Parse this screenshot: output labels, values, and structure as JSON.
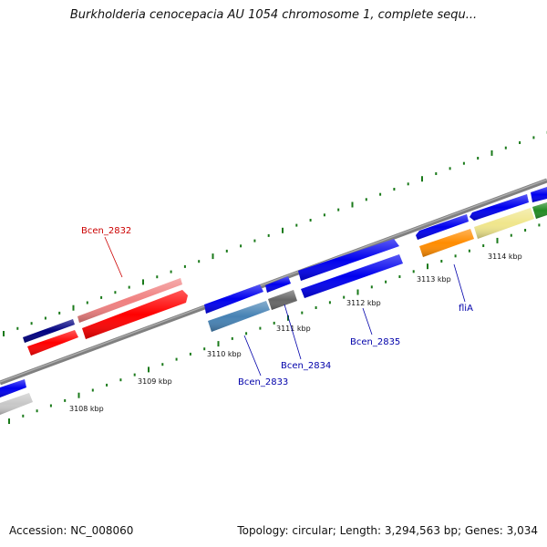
{
  "title": "Burkholderia cenocepacia AU 1054 chromosome 1, complete sequ...",
  "footer": {
    "accession": "Accession: NC_008060",
    "info": "Topology: circular; Length: 3,294,563 bp; Genes: 3,034"
  },
  "scale_labels": [
    "3108 kbp",
    "3109 kbp",
    "3110 kbp",
    "3111 kbp",
    "3112 kbp",
    "3113 kbp",
    "3114 kbp"
  ],
  "gene_labels": {
    "bcen_2832": "Bcen_2832",
    "bcen_2833": "Bcen_2833",
    "bcen_2834": "Bcen_2834",
    "bcen_2835": "Bcen_2835",
    "flia": "fliA"
  },
  "colors": {
    "backbone": "#808080",
    "tick": "#1a7a1a",
    "blue": "#0000ee",
    "navy": "#000080",
    "red": "#ff0000",
    "pink": "#f08080",
    "steel": "#4682b4",
    "gray": "#666666",
    "orange": "#ff8c00",
    "khaki": "#f0e68c",
    "green": "#228b22",
    "lightgray": "#c8c8c8",
    "label_red": "#cc0000",
    "label_blue": "#0000aa"
  }
}
